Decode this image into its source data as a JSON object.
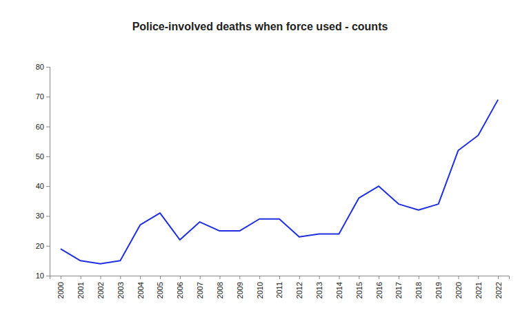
{
  "chart_data": {
    "type": "line",
    "title": "Police-involved deaths when force used - counts",
    "categories": [
      "2000",
      "2001",
      "2002",
      "2003",
      "2004",
      "2005",
      "2006",
      "2007",
      "2008",
      "2009",
      "2010",
      "2011",
      "2012",
      "2013",
      "2014",
      "2015",
      "2016",
      "2017",
      "2018",
      "2019",
      "2020",
      "2021",
      "2022"
    ],
    "values": [
      19,
      15,
      14,
      15,
      27,
      31,
      22,
      28,
      25,
      25,
      29,
      29,
      23,
      24,
      24,
      36,
      40,
      34,
      32,
      34,
      52,
      57,
      69
    ],
    "color": "#1f2fe0",
    "ylim": [
      10,
      80
    ],
    "yticks": [
      10,
      20,
      30,
      40,
      50,
      60,
      70,
      80
    ],
    "grid": false
  }
}
